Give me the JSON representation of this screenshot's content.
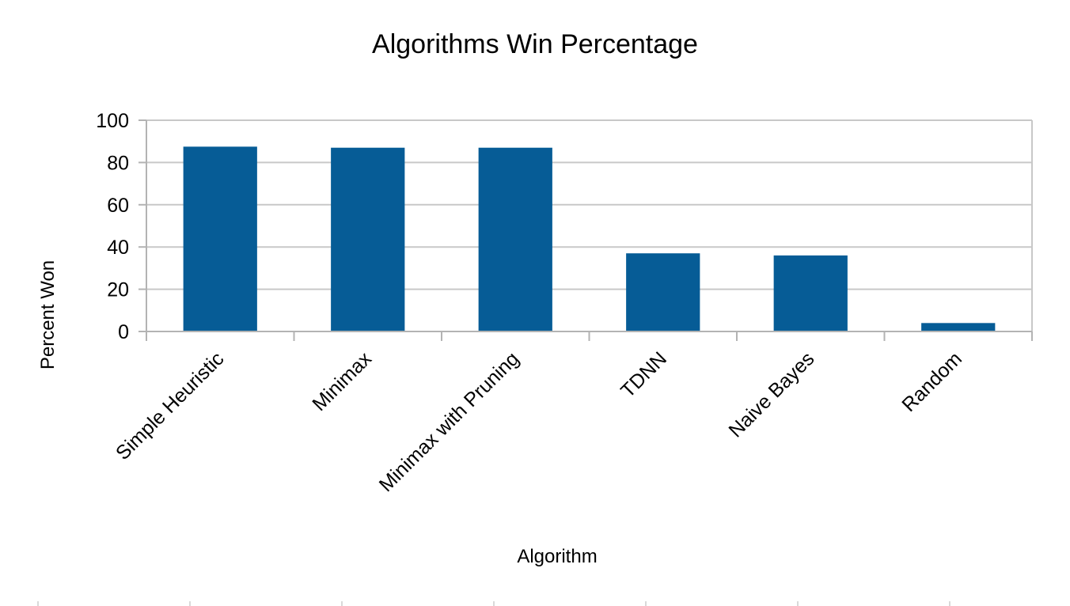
{
  "chart_data": {
    "type": "bar",
    "title": "Algorithms Win Percentage",
    "xlabel": "Algorithm",
    "ylabel": "Percent Won",
    "categories": [
      "Simple Heuristic",
      "Minimax",
      "Minimax with Pruning",
      "TDNN",
      "Naive Bayes",
      "Random"
    ],
    "series": [
      {
        "name": "Percent Won",
        "values": [
          87.5,
          87,
          87,
          37,
          36,
          4
        ]
      }
    ],
    "ylim": [
      0,
      100
    ],
    "yticks": [
      0,
      20,
      40,
      60,
      80,
      100
    ],
    "grid": true,
    "legend": "none",
    "colors": {
      "bar": "#065c96",
      "grid": "#c8c8c8",
      "axis": "#b3b3b3",
      "text": "#000000"
    }
  }
}
